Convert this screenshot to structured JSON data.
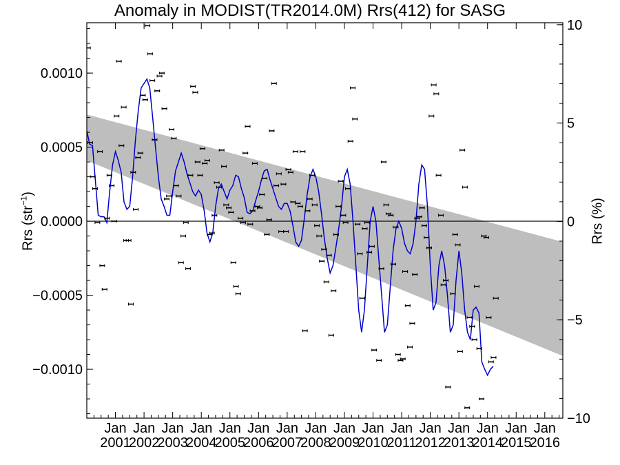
{
  "chart_data": {
    "type": "scatter",
    "title": "Anomaly in MODIST(TR2014.0M) Rrs(412) for SASG",
    "ylabel_left": {
      "prefix": "Rrs (str",
      "sup": "−1",
      "suffix": ")"
    },
    "ylabel_right": "Rrs (%)",
    "x_tick_labels": [
      [
        "Jan",
        "2001"
      ],
      [
        "Jan",
        "2002"
      ],
      [
        "Jan",
        "2003"
      ],
      [
        "Jan",
        "2004"
      ],
      [
        "Jan",
        "2005"
      ],
      [
        "Jan",
        "2006"
      ],
      [
        "Jan",
        "2007"
      ],
      [
        "Jan",
        "2008"
      ],
      [
        "Jan",
        "2009"
      ],
      [
        "Jan",
        "2010"
      ],
      [
        "Jan",
        "2011"
      ],
      [
        "Jan",
        "2012"
      ],
      [
        "Jan",
        "2013"
      ],
      [
        "Jan",
        "2014"
      ],
      [
        "Jan",
        "2015"
      ],
      [
        "Jan",
        "2016"
      ]
    ],
    "x_tick_years": [
      2001,
      2002,
      2003,
      2004,
      2005,
      2006,
      2007,
      2008,
      2009,
      2010,
      2011,
      2012,
      2013,
      2014,
      2015,
      2016
    ],
    "xlim": [
      2000.0,
      2016.63
    ],
    "ylim_left": [
      -0.00133,
      0.00134
    ],
    "ylim_right": [
      -10.0,
      10.1
    ],
    "y_ticks_left": [
      0.001,
      0.0005,
      0.0,
      -0.0005,
      -0.001
    ],
    "y_tick_labels_left": [
      "0.0010",
      "0.0005",
      "0.0000",
      "−0.0005",
      "−0.0010"
    ],
    "y_ticks_right": [
      10,
      5,
      0,
      -5,
      -10
    ],
    "y_tick_labels_right": [
      "10",
      "5",
      "0",
      "−5",
      "−10"
    ],
    "zero_line": 0.0,
    "trend_band": {
      "x": [
        2000.0,
        2016.63
      ],
      "upper": [
        0.00072,
        -0.00014
      ],
      "lower": [
        0.00041,
        -0.00091
      ]
    },
    "points": [
      [
        2000.04,
        0.00117
      ],
      [
        2000.12,
        0.00053
      ],
      [
        2000.21,
        0.0003
      ],
      [
        2000.29,
        0.00022
      ],
      [
        2000.37,
        -1e-05
      ],
      [
        2000.46,
        0.00047
      ],
      [
        2000.54,
        -0.0003
      ],
      [
        2000.62,
        -0.00046
      ],
      [
        2000.71,
        2e-05
      ],
      [
        2000.79,
        0.00031
      ],
      [
        2000.87,
        0.00024
      ],
      [
        2000.96,
        0.0
      ],
      [
        2001.04,
        0.00071
      ],
      [
        2001.12,
        0.00108
      ],
      [
        2001.21,
        0.00051
      ],
      [
        2001.29,
        0.00077
      ],
      [
        2001.37,
        -0.00013
      ],
      [
        2001.46,
        -0.00013
      ],
      [
        2001.54,
        -0.00056
      ],
      [
        2001.62,
        0.00033
      ],
      [
        2001.71,
        8e-05
      ],
      [
        2001.79,
        0.00043
      ],
      [
        2001.87,
        0.00046
      ],
      [
        2001.96,
        0.00085
      ],
      [
        2002.04,
        0.00082
      ],
      [
        2002.12,
        0.00132
      ],
      [
        2002.21,
        0.00113
      ],
      [
        2002.29,
        0.00095
      ],
      [
        2002.37,
        0.00055
      ],
      [
        2002.46,
        0.00088
      ],
      [
        2002.54,
        0.00098
      ],
      [
        2002.62,
        0.001
      ],
      [
        2002.71,
        0.00076
      ],
      [
        2002.79,
        0.00015
      ],
      [
        2002.87,
        0.00017
      ],
      [
        2002.96,
        0.00062
      ],
      [
        2003.04,
        0.00056
      ],
      [
        2003.12,
        0.00024
      ],
      [
        2003.21,
        0.00017
      ],
      [
        2003.29,
        -0.00028
      ],
      [
        2003.37,
        -0.0001
      ],
      [
        2003.46,
        -1e-05
      ],
      [
        2003.54,
        -0.00032
      ],
      [
        2003.62,
        0.00031
      ],
      [
        2003.71,
        0.00091
      ],
      [
        2003.79,
        0.00087
      ],
      [
        2003.87,
        0.0004
      ],
      [
        2003.96,
        0.00031
      ],
      [
        2004.04,
        0.00049
      ],
      [
        2004.12,
        0.00039
      ],
      [
        2004.21,
        0.00041
      ],
      [
        2004.29,
        -9e-05
      ],
      [
        2004.37,
        -8e-05
      ],
      [
        2004.46,
        4e-05
      ],
      [
        2004.54,
        0.00026
      ],
      [
        2004.62,
        0.00023
      ],
      [
        2004.71,
        0.00048
      ],
      [
        2004.79,
        0.00037
      ],
      [
        2004.87,
        0.00011
      ],
      [
        2004.96,
        9e-05
      ],
      [
        2005.04,
        6e-05
      ],
      [
        2005.12,
        -0.00028
      ],
      [
        2005.21,
        -0.00044
      ],
      [
        2005.29,
        -0.00049
      ],
      [
        2005.37,
        2e-05
      ],
      [
        2005.46,
        -1e-05
      ],
      [
        2005.54,
        0.00046
      ],
      [
        2005.62,
        0.00064
      ],
      [
        2005.71,
        -2e-05
      ],
      [
        2005.79,
        7e-05
      ],
      [
        2005.87,
        0.00039
      ],
      [
        2005.96,
        0.0001
      ],
      [
        2006.04,
        9e-05
      ],
      [
        2006.12,
        0.00018
      ],
      [
        2006.21,
        0.00029
      ],
      [
        2006.29,
        -9e-05
      ],
      [
        2006.37,
        1e-05
      ],
      [
        2006.46,
        0.00061
      ],
      [
        2006.54,
        0.00093
      ],
      [
        2006.62,
        0.00024
      ],
      [
        2006.71,
        0.00032
      ],
      [
        2006.79,
        -7e-05
      ],
      [
        2006.87,
        0.00025
      ],
      [
        2006.96,
        -7e-05
      ],
      [
        2007.04,
        0.00035
      ],
      [
        2007.12,
        0.00033
      ],
      [
        2007.21,
        0.00013
      ],
      [
        2007.29,
        0.00047
      ],
      [
        2007.37,
        0.00012
      ],
      [
        2007.46,
        0.0001
      ],
      [
        2007.54,
        0.00047
      ],
      [
        2007.62,
        -0.00074
      ],
      [
        2007.71,
        7e-05
      ],
      [
        2007.79,
        0.00015
      ],
      [
        2007.87,
        0.00031
      ],
      [
        2007.96,
        0.00011
      ],
      [
        2008.04,
        -3e-05
      ],
      [
        2008.12,
        -0.0001
      ],
      [
        2008.21,
        -0.00027
      ],
      [
        2008.29,
        -0.00019
      ],
      [
        2008.37,
        -0.00041
      ],
      [
        2008.46,
        -0.00023
      ],
      [
        2008.54,
        -0.00077
      ],
      [
        2008.62,
        -0.00047
      ],
      [
        2008.71,
        -9e-05
      ],
      [
        2008.79,
        0.0001
      ],
      [
        2008.87,
        0.00027
      ],
      [
        2008.96,
        4e-05
      ],
      [
        2009.04,
        -1e-05
      ],
      [
        2009.12,
        0.00022
      ],
      [
        2009.21,
        0.00054
      ],
      [
        2009.29,
        0.0009
      ],
      [
        2009.37,
        0.00069
      ],
      [
        2009.46,
        -2e-05
      ],
      [
        2009.54,
        -0.00022
      ],
      [
        2009.62,
        -0.00052
      ],
      [
        2009.71,
        -5e-05
      ],
      [
        2009.79,
        -1e-05
      ],
      [
        2009.87,
        -0.00021
      ],
      [
        2009.96,
        -0.00017
      ],
      [
        2010.04,
        -0.00087
      ],
      [
        2010.12,
        -0.00134
      ],
      [
        2010.21,
        -0.00094
      ],
      [
        2010.29,
        -0.00032
      ],
      [
        2010.37,
        0.0004
      ],
      [
        2010.46,
        0.00011
      ],
      [
        2010.54,
        5e-05
      ],
      [
        2010.62,
        4e-05
      ],
      [
        2010.71,
        -0.00029
      ],
      [
        2010.79,
        -4e-05
      ],
      [
        2010.87,
        -0.0009
      ],
      [
        2010.96,
        -0.00094
      ],
      [
        2011.04,
        -0.00093
      ],
      [
        2011.12,
        -0.00034
      ],
      [
        2011.21,
        -0.00057
      ],
      [
        2011.29,
        -0.00085
      ],
      [
        2011.37,
        -0.00069
      ],
      [
        2011.46,
        -0.00036
      ],
      [
        2011.54,
        2e-05
      ],
      [
        2011.62,
        3e-05
      ],
      [
        2011.71,
        9e-05
      ],
      [
        2011.79,
        -3e-05
      ],
      [
        2011.87,
        -0.00011
      ],
      [
        2011.96,
        -0.00018
      ],
      [
        2012.04,
        0.00071
      ],
      [
        2012.12,
        0.00092
      ],
      [
        2012.21,
        0.00086
      ],
      [
        2012.29,
        0.00031
      ],
      [
        2012.37,
        4e-05
      ],
      [
        2012.46,
        -0.00043
      ],
      [
        2012.54,
        -0.0004
      ],
      [
        2012.62,
        -0.00112
      ],
      [
        2012.71,
        -0.00134
      ],
      [
        2012.79,
        -0.00049
      ],
      [
        2012.87,
        -9e-05
      ],
      [
        2012.96,
        -0.00016
      ],
      [
        2013.04,
        -0.00088
      ],
      [
        2013.12,
        0.00048
      ],
      [
        2013.21,
        0.00023
      ],
      [
        2013.29,
        -0.00126
      ],
      [
        2013.37,
        -0.00065
      ],
      [
        2013.46,
        -0.00071
      ],
      [
        2013.54,
        -0.0008
      ],
      [
        2013.62,
        -0.00044
      ],
      [
        2013.71,
        -0.00086
      ],
      [
        2013.79,
        -0.0012
      ],
      [
        2013.87,
        -0.0001
      ],
      [
        2013.96,
        -0.00011
      ],
      [
        2014.04,
        -0.00065
      ],
      [
        2014.12,
        -0.00095
      ],
      [
        2014.21,
        -0.00092
      ],
      [
        2014.29,
        -0.00052
      ]
    ],
    "smooth_line": [
      [
        2000.0,
        0.00061
      ],
      [
        2000.1,
        0.00052
      ],
      [
        2000.2,
        0.00051
      ],
      [
        2000.3,
        0.00027
      ],
      [
        2000.4,
        4e-05
      ],
      [
        2000.5,
        3e-05
      ],
      [
        2000.6,
        3e-05
      ],
      [
        2000.7,
        -1e-05
      ],
      [
        2000.8,
        0.0002
      ],
      [
        2000.9,
        0.00038
      ],
      [
        2001.0,
        0.00047
      ],
      [
        2001.1,
        0.00041
      ],
      [
        2001.2,
        0.00033
      ],
      [
        2001.3,
        0.00013
      ],
      [
        2001.4,
        8e-05
      ],
      [
        2001.5,
        0.0001
      ],
      [
        2001.6,
        0.0003
      ],
      [
        2001.7,
        0.00055
      ],
      [
        2001.8,
        0.00075
      ],
      [
        2001.9,
        0.0009
      ],
      [
        2002.0,
        0.00093
      ],
      [
        2002.1,
        0.00096
      ],
      [
        2002.2,
        0.0009
      ],
      [
        2002.3,
        0.0007
      ],
      [
        2002.4,
        0.0005
      ],
      [
        2002.5,
        0.0003
      ],
      [
        2002.6,
        0.00015
      ],
      [
        2002.7,
        0.0001
      ],
      [
        2002.8,
        4e-05
      ],
      [
        2002.9,
        4e-05
      ],
      [
        2003.0,
        0.0002
      ],
      [
        2003.1,
        0.00034
      ],
      [
        2003.2,
        0.0004
      ],
      [
        2003.3,
        0.00046
      ],
      [
        2003.4,
        0.0004
      ],
      [
        2003.5,
        0.00032
      ],
      [
        2003.6,
        0.00026
      ],
      [
        2003.7,
        0.0002
      ],
      [
        2003.8,
        0.00017
      ],
      [
        2003.9,
        0.00021
      ],
      [
        2004.0,
        0.00018
      ],
      [
        2004.1,
        7e-05
      ],
      [
        2004.2,
        -8e-05
      ],
      [
        2004.3,
        -0.00014
      ],
      [
        2004.4,
        -8e-05
      ],
      [
        2004.5,
        0.0001
      ],
      [
        2004.6,
        0.00022
      ],
      [
        2004.7,
        0.00025
      ],
      [
        2004.8,
        0.0002
      ],
      [
        2004.9,
        0.00015
      ],
      [
        2005.0,
        0.00021
      ],
      [
        2005.1,
        0.00024
      ],
      [
        2005.2,
        0.00031
      ],
      [
        2005.3,
        0.0003
      ],
      [
        2005.4,
        0.00022
      ],
      [
        2005.5,
        0.00016
      ],
      [
        2005.6,
        6e-05
      ],
      [
        2005.7,
        5e-05
      ],
      [
        2005.8,
        7e-05
      ],
      [
        2005.9,
        0.00014
      ],
      [
        2006.0,
        0.0002
      ],
      [
        2006.1,
        0.00028
      ],
      [
        2006.2,
        0.00034
      ],
      [
        2006.3,
        0.00035
      ],
      [
        2006.4,
        0.00028
      ],
      [
        2006.5,
        0.00022
      ],
      [
        2006.6,
        0.00016
      ],
      [
        2006.7,
        0.0001
      ],
      [
        2006.8,
        8e-05
      ],
      [
        2006.9,
        0.00012
      ],
      [
        2007.0,
        0.00012
      ],
      [
        2007.1,
        7e-05
      ],
      [
        2007.2,
        -3e-05
      ],
      [
        2007.3,
        -0.00014
      ],
      [
        2007.4,
        -0.00017
      ],
      [
        2007.5,
        -0.00013
      ],
      [
        2007.6,
        2e-05
      ],
      [
        2007.7,
        0.00018
      ],
      [
        2007.8,
        0.0003
      ],
      [
        2007.9,
        0.00035
      ],
      [
        2008.0,
        0.0003
      ],
      [
        2008.1,
        0.0002
      ],
      [
        2008.2,
        5e-05
      ],
      [
        2008.3,
        -0.00012
      ],
      [
        2008.4,
        -0.00025
      ],
      [
        2008.5,
        -0.00035
      ],
      [
        2008.6,
        -0.0003
      ],
      [
        2008.7,
        -0.00018
      ],
      [
        2008.8,
        -5e-05
      ],
      [
        2008.9,
        0.0001
      ],
      [
        2009.0,
        0.0003
      ],
      [
        2009.1,
        0.00035
      ],
      [
        2009.2,
        0.00025
      ],
      [
        2009.3,
        0.0
      ],
      [
        2009.4,
        -0.0003
      ],
      [
        2009.5,
        -0.0006
      ],
      [
        2009.6,
        -0.00075
      ],
      [
        2009.7,
        -0.0006
      ],
      [
        2009.8,
        -0.0003
      ],
      [
        2009.9,
        0.0
      ],
      [
        2010.0,
        0.0001
      ],
      [
        2010.1,
        0.0
      ],
      [
        2010.2,
        -0.00025
      ],
      [
        2010.3,
        -0.0005
      ],
      [
        2010.4,
        -0.00075
      ],
      [
        2010.5,
        -0.0007
      ],
      [
        2010.6,
        -0.00045
      ],
      [
        2010.7,
        -0.0002
      ],
      [
        2010.8,
        -5e-05
      ],
      [
        2010.9,
        0.0
      ],
      [
        2011.0,
        -5e-05
      ],
      [
        2011.1,
        -0.00015
      ],
      [
        2011.2,
        -0.0002
      ],
      [
        2011.3,
        -0.00022
      ],
      [
        2011.4,
        -0.00015
      ],
      [
        2011.5,
        0.0
      ],
      [
        2011.6,
        0.00025
      ],
      [
        2011.7,
        0.00038
      ],
      [
        2011.8,
        0.00035
      ],
      [
        2011.9,
        0.0001
      ],
      [
        2012.0,
        -0.0003
      ],
      [
        2012.1,
        -0.0006
      ],
      [
        2012.2,
        -0.00055
      ],
      [
        2012.3,
        -0.0003
      ],
      [
        2012.4,
        -0.0002
      ],
      [
        2012.5,
        -0.0003
      ],
      [
        2012.6,
        -0.0005
      ],
      [
        2012.7,
        -0.00075
      ],
      [
        2012.8,
        -0.0007
      ],
      [
        2012.9,
        -0.0004
      ],
      [
        2013.0,
        -0.0002
      ],
      [
        2013.1,
        -0.00035
      ],
      [
        2013.2,
        -0.0006
      ],
      [
        2013.3,
        -0.00075
      ],
      [
        2013.4,
        -0.0008
      ],
      [
        2013.5,
        -0.0006
      ],
      [
        2013.6,
        -0.00058
      ],
      [
        2013.7,
        -0.00062
      ],
      [
        2013.8,
        -0.00095
      ],
      [
        2013.9,
        -0.001
      ],
      [
        2014.0,
        -0.00104
      ],
      [
        2014.1,
        -0.001
      ],
      [
        2014.2,
        -0.00098
      ]
    ]
  }
}
